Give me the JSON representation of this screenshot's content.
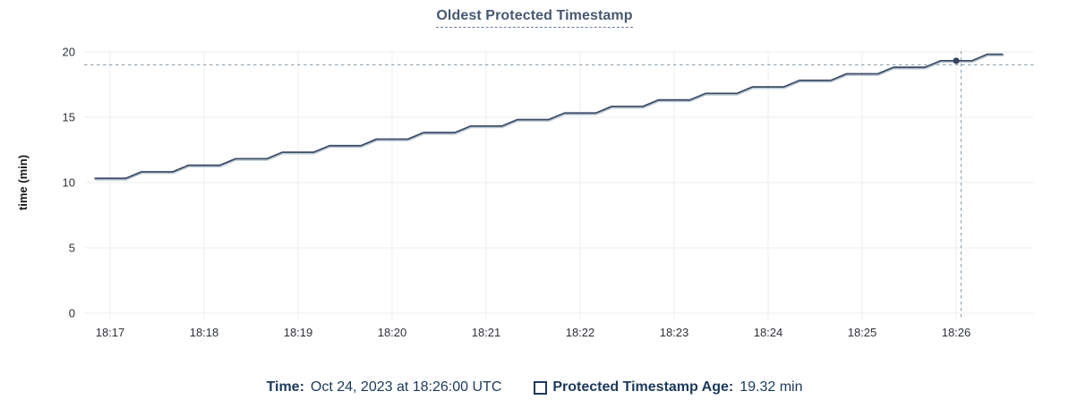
{
  "header": {
    "title": "Oldest Protected Timestamp"
  },
  "tooltip": {
    "time_label": "Time:",
    "time_value": "Oct 24, 2023 at 18:26:00 UTC",
    "series_label": "Protected Timestamp Age:",
    "series_value": "19.32 min",
    "checkbox_icon": "square-outline-icon"
  },
  "colors": {
    "line": "#3e4e66",
    "line_halo": "#bac8d4",
    "grid": "#ececec",
    "crosshair": "#91a6b4",
    "hover_dot": "#36455e",
    "title_text": "#475872",
    "legend_text": "#1c3a5c",
    "tick_text": "#2d3138"
  },
  "chart_data": {
    "type": "line",
    "title": "Oldest Protected Timestamp",
    "xlabel": "",
    "ylabel": "time (min)",
    "ylim": [
      0,
      20
    ],
    "y_ticks": [
      0,
      5,
      10,
      15,
      20
    ],
    "x_ticks": [
      "18:17",
      "18:18",
      "18:19",
      "18:20",
      "18:21",
      "18:22",
      "18:23",
      "18:24",
      "18:25",
      "18:26"
    ],
    "grid": true,
    "legend_position": "bottom",
    "series": [
      {
        "name": "Protected Timestamp Age",
        "unit": "min",
        "color": "#3e4e66",
        "points": [
          [
            "18:16:50",
            10.32
          ],
          [
            "18:17:00",
            10.32
          ],
          [
            "18:17:10",
            10.32
          ],
          [
            "18:17:20",
            10.82
          ],
          [
            "18:17:30",
            10.82
          ],
          [
            "18:17:40",
            10.82
          ],
          [
            "18:17:50",
            11.32
          ],
          [
            "18:18:00",
            11.32
          ],
          [
            "18:18:10",
            11.32
          ],
          [
            "18:18:20",
            11.82
          ],
          [
            "18:18:30",
            11.82
          ],
          [
            "18:18:40",
            11.82
          ],
          [
            "18:18:50",
            12.32
          ],
          [
            "18:19:00",
            12.32
          ],
          [
            "18:19:10",
            12.32
          ],
          [
            "18:19:20",
            12.82
          ],
          [
            "18:19:30",
            12.82
          ],
          [
            "18:19:40",
            12.82
          ],
          [
            "18:19:50",
            13.32
          ],
          [
            "18:20:00",
            13.32
          ],
          [
            "18:20:10",
            13.32
          ],
          [
            "18:20:20",
            13.82
          ],
          [
            "18:20:30",
            13.82
          ],
          [
            "18:20:40",
            13.82
          ],
          [
            "18:20:50",
            14.32
          ],
          [
            "18:21:00",
            14.32
          ],
          [
            "18:21:10",
            14.32
          ],
          [
            "18:21:20",
            14.82
          ],
          [
            "18:21:30",
            14.82
          ],
          [
            "18:21:40",
            14.82
          ],
          [
            "18:21:50",
            15.32
          ],
          [
            "18:22:00",
            15.32
          ],
          [
            "18:22:10",
            15.32
          ],
          [
            "18:22:20",
            15.82
          ],
          [
            "18:22:30",
            15.82
          ],
          [
            "18:22:40",
            15.82
          ],
          [
            "18:22:50",
            16.32
          ],
          [
            "18:23:00",
            16.32
          ],
          [
            "18:23:10",
            16.32
          ],
          [
            "18:23:20",
            16.82
          ],
          [
            "18:23:30",
            16.82
          ],
          [
            "18:23:40",
            16.82
          ],
          [
            "18:23:50",
            17.32
          ],
          [
            "18:24:00",
            17.32
          ],
          [
            "18:24:10",
            17.32
          ],
          [
            "18:24:20",
            17.82
          ],
          [
            "18:24:30",
            17.82
          ],
          [
            "18:24:40",
            17.82
          ],
          [
            "18:24:50",
            18.32
          ],
          [
            "18:25:00",
            18.32
          ],
          [
            "18:25:10",
            18.32
          ],
          [
            "18:25:20",
            18.82
          ],
          [
            "18:25:30",
            18.82
          ],
          [
            "18:25:40",
            18.82
          ],
          [
            "18:25:50",
            19.32
          ],
          [
            "18:26:00",
            19.32
          ],
          [
            "18:26:10",
            19.32
          ],
          [
            "18:26:20",
            19.82
          ],
          [
            "18:26:30",
            19.82
          ]
        ]
      }
    ],
    "hover": {
      "t": "18:26:00",
      "v": 19.32,
      "time_text": "Oct 24, 2023 at 18:26:00 UTC",
      "value_text": "19.32 min"
    }
  }
}
